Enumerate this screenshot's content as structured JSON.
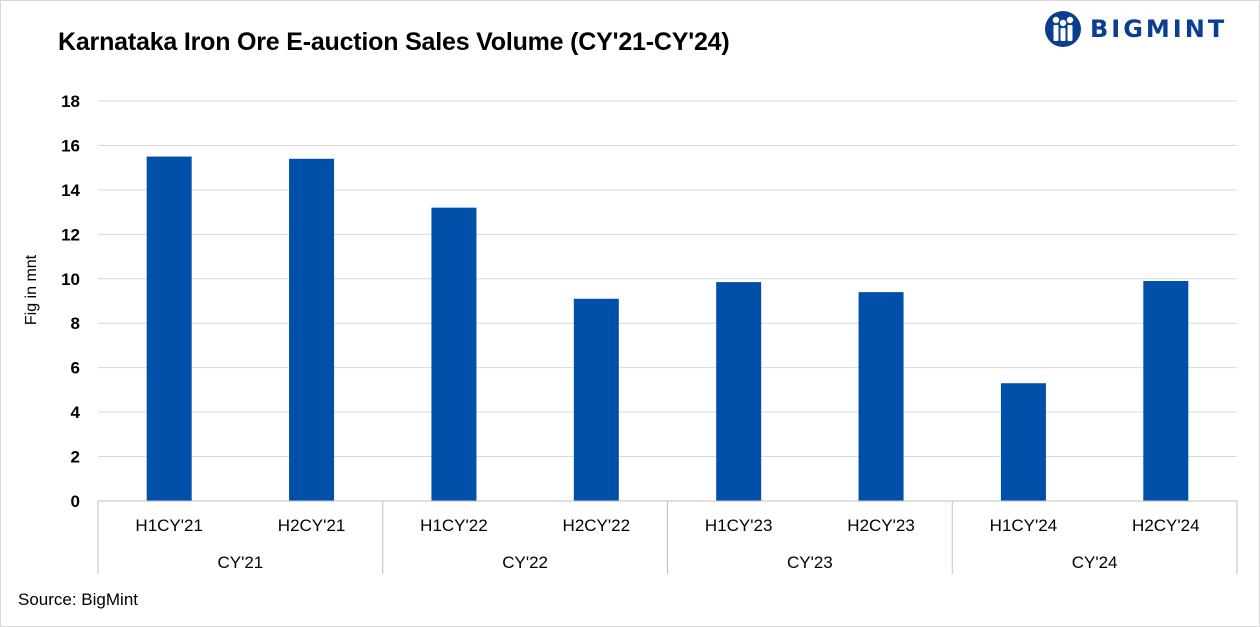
{
  "title": "Karnataka Iron Ore E-auction Sales Volume (CY'21-CY'24)",
  "brand": {
    "name": "BIGMINT",
    "color": "#0b3d91",
    "icon": "bigmint-logo-icon"
  },
  "source": "Source: BigMint",
  "chart_data": {
    "type": "bar",
    "title": "Karnataka Iron Ore E-auction Sales Volume (CY'21-CY'24)",
    "ylabel": "Fig in mnt",
    "xlabel": "",
    "ylim": [
      0,
      18
    ],
    "yticks": [
      0,
      2,
      4,
      6,
      8,
      10,
      12,
      14,
      16,
      18
    ],
    "grid": true,
    "bar_color": "#0050aa",
    "categories": [
      "H1CY'21",
      "H2CY'21",
      "H1CY'22",
      "H2CY'22",
      "H1CY'23",
      "H2CY'23",
      "H1CY'24",
      "H2CY'24"
    ],
    "groups": [
      "CY'21",
      "CY'22",
      "CY'23",
      "CY'24"
    ],
    "values": [
      15.5,
      15.4,
      13.2,
      9.1,
      9.85,
      9.4,
      5.3,
      9.9
    ]
  }
}
